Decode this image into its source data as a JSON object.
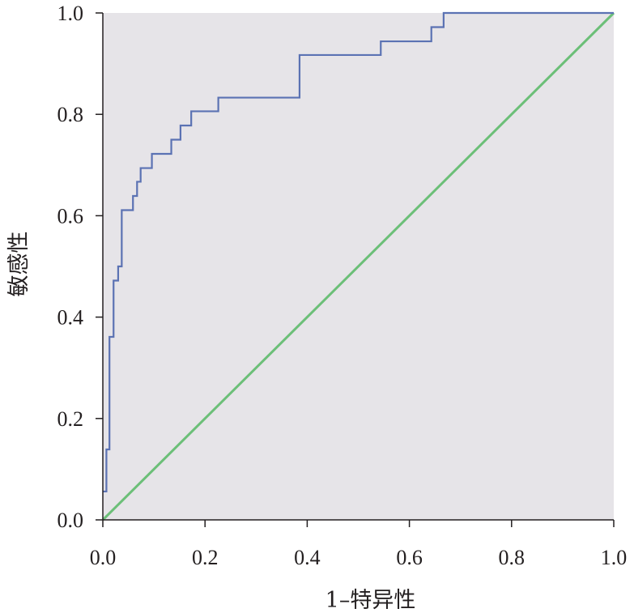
{
  "chart_data": {
    "type": "line",
    "title": "",
    "xlabel": "1–特异性",
    "ylabel": "敏感性",
    "xlim": [
      0,
      1
    ],
    "ylim": [
      0,
      1
    ],
    "x_ticks": [
      "0.0",
      "0.2",
      "0.4",
      "0.6",
      "0.8",
      "1.0"
    ],
    "y_ticks": [
      "0.0",
      "0.2",
      "0.4",
      "0.6",
      "0.8",
      "1.0"
    ],
    "grid": false,
    "legend": "none",
    "colors": {
      "background": "#e6e4e8",
      "roc": "#5b72b3",
      "reference": "#6cbf78",
      "axis": "#231f20"
    },
    "series": [
      {
        "style": "step",
        "x": [
          0.0,
          0.007,
          0.007,
          0.013,
          0.013,
          0.021,
          0.021,
          0.03,
          0.03,
          0.037,
          0.037,
          0.059,
          0.059,
          0.067,
          0.067,
          0.074,
          0.074,
          0.096,
          0.096,
          0.134,
          0.134,
          0.152,
          0.152,
          0.173,
          0.173,
          0.226,
          0.226,
          0.385,
          0.385,
          0.544,
          0.544,
          0.643,
          0.643,
          0.667,
          0.667,
          1.0
        ],
        "y": [
          0.056,
          0.056,
          0.139,
          0.139,
          0.361,
          0.361,
          0.472,
          0.472,
          0.5,
          0.5,
          0.611,
          0.611,
          0.639,
          0.639,
          0.667,
          0.667,
          0.694,
          0.694,
          0.722,
          0.722,
          0.75,
          0.75,
          0.778,
          0.778,
          0.806,
          0.806,
          0.833,
          0.833,
          0.917,
          0.917,
          0.944,
          0.944,
          0.972,
          0.972,
          1.0,
          1.0
        ]
      },
      {
        "style": "line",
        "x": [
          0.0,
          1.0
        ],
        "y": [
          0.0,
          1.0
        ]
      }
    ]
  }
}
